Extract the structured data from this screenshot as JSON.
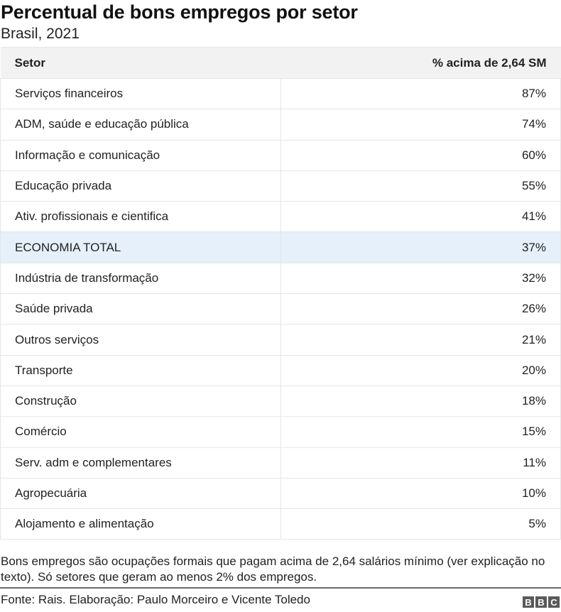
{
  "chart_data": {
    "type": "table",
    "title": "Percentual de bons empregos por setor",
    "subtitle": "Brasil, 2021",
    "columns": [
      "Setor",
      "% acima de 2,64 SM"
    ],
    "rows": [
      {
        "setor": "Serviços financeiros",
        "value": "87%"
      },
      {
        "setor": "ADM, saúde e educação pública",
        "value": "74%"
      },
      {
        "setor": "Informação e comunicação",
        "value": "60%"
      },
      {
        "setor": "Educação privada",
        "value": "55%"
      },
      {
        "setor": "Ativ. profissionais e cientifica",
        "value": "41%"
      },
      {
        "setor": "ECONOMIA TOTAL",
        "value": "37%",
        "highlight": true
      },
      {
        "setor": "Indústria de transformação",
        "value": "32%"
      },
      {
        "setor": "Saúde privada",
        "value": "26%"
      },
      {
        "setor": "Outros serviços",
        "value": "21%"
      },
      {
        "setor": "Transporte",
        "value": "20%"
      },
      {
        "setor": "Construção",
        "value": "18%"
      },
      {
        "setor": "Comércio",
        "value": "15%"
      },
      {
        "setor": "Serv. adm e complementares",
        "value": "11%"
      },
      {
        "setor": "Agropecuária",
        "value": "10%"
      },
      {
        "setor": "Alojamento e alimentação",
        "value": "5%"
      }
    ],
    "note": "Bons empregos são ocupações formais que pagam acima de 2,64 salários mínimo (ver explicação no texto). Só setores que geram ao menos 2% dos empregos.",
    "source": "Fonte: Rais. Elaboração: Paulo Morceiro e Vicente Toledo",
    "logo": "BBC",
    "highlight_color": "#e5f0fa"
  }
}
